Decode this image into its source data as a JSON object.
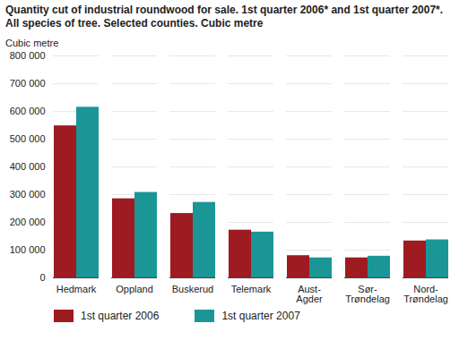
{
  "chart_data": {
    "type": "bar",
    "title": "Quantity cut of industrial roundwood for sale. 1st quarter 2006* and 1st quarter 2007*. All species of tree. Selected counties. Cubic metre",
    "y_label": "Cubic metre",
    "categories": [
      "Hedmark",
      "Oppland",
      "Buskerud",
      "Telemark",
      "Aust-Agder",
      "Sør-Trøndelag",
      "Nord-Trøndelag"
    ],
    "series": [
      {
        "name": "1st quarter 2006",
        "color": "#9e1b22",
        "values": [
          548000,
          285000,
          232000,
          172000,
          80000,
          72000,
          133000
        ]
      },
      {
        "name": "1st quarter 2007",
        "color": "#1a9696",
        "values": [
          615000,
          308000,
          272000,
          165000,
          72000,
          78000,
          137000
        ]
      }
    ],
    "ylim": [
      0,
      800000
    ],
    "yticks": [
      0,
      {
        "value": 100000,
        "label": "100 000"
      },
      {
        "value": 200000,
        "label": "200 000"
      },
      {
        "value": 300000,
        "label": "300 000"
      },
      {
        "value": 400000,
        "label": "400 000"
      },
      {
        "value": 500000,
        "label": "500 000"
      },
      {
        "value": 600000,
        "label": "600 000"
      },
      {
        "value": 700000,
        "label": "700 000"
      },
      {
        "value": 800000,
        "label": "800 000"
      }
    ],
    "grid": true,
    "legend": "bottom"
  }
}
